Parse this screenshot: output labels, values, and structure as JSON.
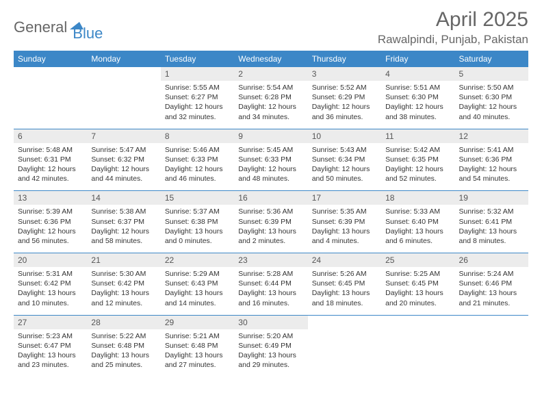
{
  "logo": {
    "part1": "General",
    "part2": "Blue",
    "triangle_color": "#3c87c7"
  },
  "title": "April 2025",
  "location": "Rawalpindi, Punjab, Pakistan",
  "colors": {
    "header_bg": "#3c87c7",
    "header_fg": "#ffffff",
    "daynum_bg": "#ececec",
    "text": "#333333",
    "muted": "#666666"
  },
  "daysOfWeek": [
    "Sunday",
    "Monday",
    "Tuesday",
    "Wednesday",
    "Thursday",
    "Friday",
    "Saturday"
  ],
  "weeks": [
    [
      null,
      null,
      {
        "n": "1",
        "sr": "5:55 AM",
        "ss": "6:27 PM",
        "dl": "12 hours and 32 minutes."
      },
      {
        "n": "2",
        "sr": "5:54 AM",
        "ss": "6:28 PM",
        "dl": "12 hours and 34 minutes."
      },
      {
        "n": "3",
        "sr": "5:52 AM",
        "ss": "6:29 PM",
        "dl": "12 hours and 36 minutes."
      },
      {
        "n": "4",
        "sr": "5:51 AM",
        "ss": "6:30 PM",
        "dl": "12 hours and 38 minutes."
      },
      {
        "n": "5",
        "sr": "5:50 AM",
        "ss": "6:30 PM",
        "dl": "12 hours and 40 minutes."
      }
    ],
    [
      {
        "n": "6",
        "sr": "5:48 AM",
        "ss": "6:31 PM",
        "dl": "12 hours and 42 minutes."
      },
      {
        "n": "7",
        "sr": "5:47 AM",
        "ss": "6:32 PM",
        "dl": "12 hours and 44 minutes."
      },
      {
        "n": "8",
        "sr": "5:46 AM",
        "ss": "6:33 PM",
        "dl": "12 hours and 46 minutes."
      },
      {
        "n": "9",
        "sr": "5:45 AM",
        "ss": "6:33 PM",
        "dl": "12 hours and 48 minutes."
      },
      {
        "n": "10",
        "sr": "5:43 AM",
        "ss": "6:34 PM",
        "dl": "12 hours and 50 minutes."
      },
      {
        "n": "11",
        "sr": "5:42 AM",
        "ss": "6:35 PM",
        "dl": "12 hours and 52 minutes."
      },
      {
        "n": "12",
        "sr": "5:41 AM",
        "ss": "6:36 PM",
        "dl": "12 hours and 54 minutes."
      }
    ],
    [
      {
        "n": "13",
        "sr": "5:39 AM",
        "ss": "6:36 PM",
        "dl": "12 hours and 56 minutes."
      },
      {
        "n": "14",
        "sr": "5:38 AM",
        "ss": "6:37 PM",
        "dl": "12 hours and 58 minutes."
      },
      {
        "n": "15",
        "sr": "5:37 AM",
        "ss": "6:38 PM",
        "dl": "13 hours and 0 minutes."
      },
      {
        "n": "16",
        "sr": "5:36 AM",
        "ss": "6:39 PM",
        "dl": "13 hours and 2 minutes."
      },
      {
        "n": "17",
        "sr": "5:35 AM",
        "ss": "6:39 PM",
        "dl": "13 hours and 4 minutes."
      },
      {
        "n": "18",
        "sr": "5:33 AM",
        "ss": "6:40 PM",
        "dl": "13 hours and 6 minutes."
      },
      {
        "n": "19",
        "sr": "5:32 AM",
        "ss": "6:41 PM",
        "dl": "13 hours and 8 minutes."
      }
    ],
    [
      {
        "n": "20",
        "sr": "5:31 AM",
        "ss": "6:42 PM",
        "dl": "13 hours and 10 minutes."
      },
      {
        "n": "21",
        "sr": "5:30 AM",
        "ss": "6:42 PM",
        "dl": "13 hours and 12 minutes."
      },
      {
        "n": "22",
        "sr": "5:29 AM",
        "ss": "6:43 PM",
        "dl": "13 hours and 14 minutes."
      },
      {
        "n": "23",
        "sr": "5:28 AM",
        "ss": "6:44 PM",
        "dl": "13 hours and 16 minutes."
      },
      {
        "n": "24",
        "sr": "5:26 AM",
        "ss": "6:45 PM",
        "dl": "13 hours and 18 minutes."
      },
      {
        "n": "25",
        "sr": "5:25 AM",
        "ss": "6:45 PM",
        "dl": "13 hours and 20 minutes."
      },
      {
        "n": "26",
        "sr": "5:24 AM",
        "ss": "6:46 PM",
        "dl": "13 hours and 21 minutes."
      }
    ],
    [
      {
        "n": "27",
        "sr": "5:23 AM",
        "ss": "6:47 PM",
        "dl": "13 hours and 23 minutes."
      },
      {
        "n": "28",
        "sr": "5:22 AM",
        "ss": "6:48 PM",
        "dl": "13 hours and 25 minutes."
      },
      {
        "n": "29",
        "sr": "5:21 AM",
        "ss": "6:48 PM",
        "dl": "13 hours and 27 minutes."
      },
      {
        "n": "30",
        "sr": "5:20 AM",
        "ss": "6:49 PM",
        "dl": "13 hours and 29 minutes."
      },
      null,
      null,
      null
    ]
  ]
}
